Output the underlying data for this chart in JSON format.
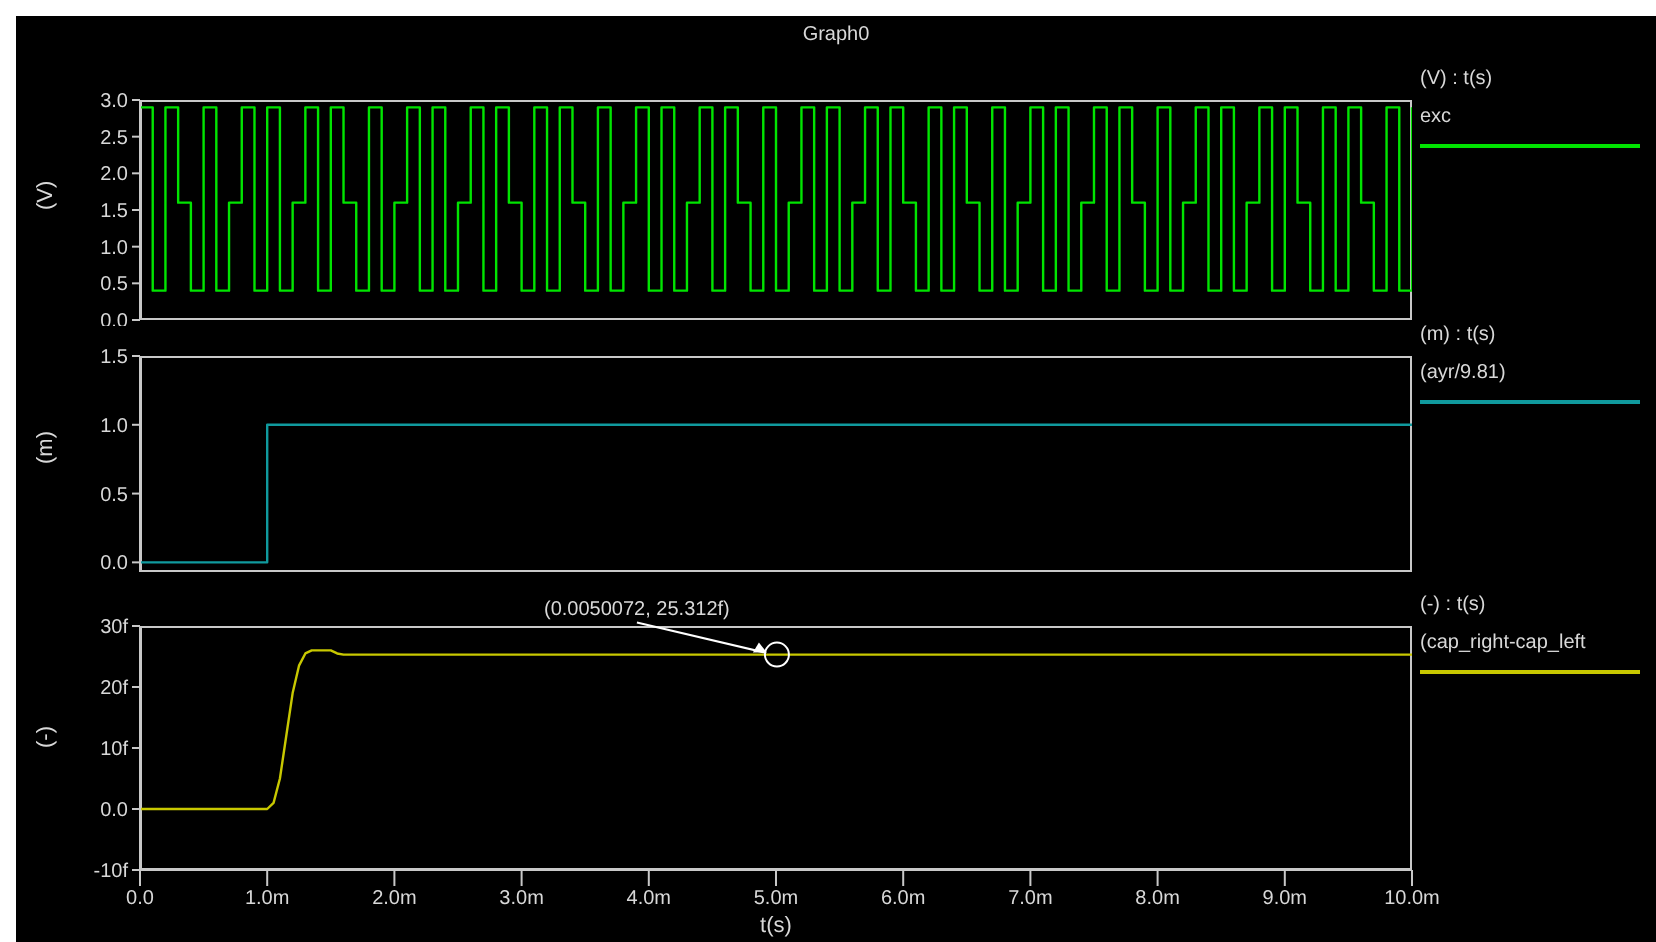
{
  "chart_data": [
    {
      "type": "step",
      "title": "Graph0",
      "ylabel": "(V)",
      "legend_title": "(V) : t(s)",
      "legend": "right",
      "tick_labels": "y",
      "xlim": [
        0,
        10
      ],
      "ylim": [
        0,
        3
      ],
      "yticks": [
        {
          "value": 0,
          "label": "0.0"
        },
        0.5,
        {
          "value": 1,
          "label": "1.0"
        },
        1.5,
        {
          "value": 2,
          "label": "2.0"
        },
        2.5,
        {
          "value": 3,
          "label": "3.0"
        }
      ],
      "series": [
        {
          "name": "exc",
          "color": "#00e400",
          "x": [
            0,
            0.1,
            0.2,
            0.3,
            0.4,
            0.5,
            0.6,
            0.7,
            0.8,
            0.9,
            1,
            1.1,
            1.2,
            1.3,
            1.4,
            1.5,
            1.6,
            1.7,
            1.8,
            1.9,
            2,
            2.1,
            2.2,
            2.3,
            2.4,
            2.5,
            2.6,
            2.7,
            2.8,
            2.9,
            3,
            3.1,
            3.2,
            3.3,
            3.4,
            3.5,
            3.6,
            3.7,
            3.8,
            3.9,
            4,
            4.1,
            4.2,
            4.3,
            4.4,
            4.5,
            4.6,
            4.7,
            4.8,
            4.9,
            5,
            5.1,
            5.2,
            5.3,
            5.4,
            5.5,
            5.6,
            5.7,
            5.8,
            5.9,
            6,
            6.1,
            6.2,
            6.3,
            6.4,
            6.5,
            6.6,
            6.7,
            6.8,
            6.9,
            7,
            7.1,
            7.2,
            7.3,
            7.4,
            7.5,
            7.6,
            7.7,
            7.8,
            7.9,
            8,
            8.1,
            8.2,
            8.3,
            8.4,
            8.5,
            8.6,
            8.7,
            8.8,
            8.9,
            9,
            9.1,
            9.2,
            9.3,
            9.4,
            9.5,
            9.6,
            9.7,
            9.8,
            9.9,
            10
          ],
          "values": [
            2.9,
            0.4,
            2.9,
            1.6,
            0.4,
            2.9,
            0.4,
            1.6,
            2.9,
            0.4,
            2.9,
            0.4,
            1.6,
            2.9,
            0.4,
            2.9,
            1.6,
            0.4,
            2.9,
            0.4,
            1.6,
            2.9,
            0.4,
            2.9,
            0.4,
            1.6,
            2.9,
            0.4,
            2.9,
            1.6,
            0.4,
            2.9,
            0.4,
            2.9,
            1.6,
            0.4,
            2.9,
            0.4,
            1.6,
            2.9,
            0.4,
            2.9,
            0.4,
            1.6,
            2.9,
            0.4,
            2.9,
            1.6,
            0.4,
            2.9,
            0.4,
            1.6,
            2.9,
            0.4,
            2.9,
            0.4,
            1.6,
            2.9,
            0.4,
            2.9,
            1.6,
            0.4,
            2.9,
            0.4,
            2.9,
            1.6,
            0.4,
            2.9,
            0.4,
            1.6,
            2.9,
            0.4,
            2.9,
            0.4,
            1.6,
            2.9,
            0.4,
            2.9,
            1.6,
            0.4,
            2.9,
            0.4,
            1.6,
            2.9,
            0.4,
            2.9,
            0.4,
            1.6,
            2.9,
            0.4,
            2.9,
            1.6,
            0.4,
            2.9,
            0.4,
            2.9,
            1.6,
            0.4,
            2.9,
            0.4,
            2.9
          ]
        }
      ]
    },
    {
      "type": "line",
      "ylabel": "(m)",
      "legend_title": "(m) : t(s)",
      "legend": "right",
      "tick_labels": "y",
      "xlim": [
        0,
        10
      ],
      "ylim": [
        -0.07,
        1.5
      ],
      "yticks": [
        {
          "value": 0,
          "label": "0.0"
        },
        0.5,
        {
          "value": 1,
          "label": "1.0"
        },
        1.5
      ],
      "series": [
        {
          "name": "(ayr/9.81)",
          "color": "#109a9e",
          "x": [
            0,
            1,
            1,
            10
          ],
          "values": [
            0,
            0,
            1,
            1
          ]
        }
      ]
    },
    {
      "type": "line",
      "ylabel": "(-)",
      "xlabel": "t(s)",
      "legend_title": "(-) : t(s)",
      "legend": "right",
      "xlim": [
        0,
        10
      ],
      "xticks": [
        {
          "value": 0,
          "label": "0.0"
        },
        {
          "value": 1,
          "label": "1.0m"
        },
        {
          "value": 2,
          "label": "2.0m"
        },
        {
          "value": 3,
          "label": "3.0m"
        },
        {
          "value": 4,
          "label": "4.0m"
        },
        {
          "value": 5,
          "label": "5.0m"
        },
        {
          "value": 6,
          "label": "6.0m"
        },
        {
          "value": 7,
          "label": "7.0m"
        },
        {
          "value": 8,
          "label": "8.0m"
        },
        {
          "value": 9,
          "label": "9.0m"
        },
        {
          "value": 10,
          "label": "10.0m"
        }
      ],
      "ylim": [
        -10,
        30
      ],
      "yticks": [
        {
          "value": -10,
          "label": "-10f"
        },
        {
          "value": 0,
          "label": "0.0"
        },
        {
          "value": 10,
          "label": "10f"
        },
        {
          "value": 20,
          "label": "20f"
        },
        {
          "value": 30,
          "label": "30f"
        }
      ],
      "annotations": [
        {
          "text": "(0.0050072, 25.312f)",
          "x": 5.0072,
          "y": 25.312
        }
      ],
      "series": [
        {
          "name": "(cap_right-cap_left",
          "color": "#c8c800",
          "x": [
            0,
            1,
            1.05,
            1.1,
            1.15,
            1.2,
            1.25,
            1.3,
            1.35,
            1.5,
            1.55,
            1.6,
            10
          ],
          "values": [
            0,
            0,
            1,
            5,
            12,
            19,
            23.5,
            25.5,
            26,
            26,
            25.5,
            25.3,
            25.3
          ]
        }
      ]
    }
  ]
}
